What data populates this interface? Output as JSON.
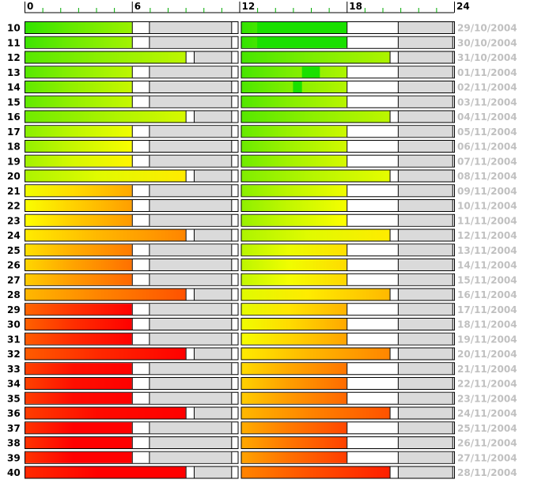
{
  "chart_data": {
    "type": "heatmap",
    "title": "",
    "xlabel": "",
    "ylabel": "",
    "x_ticks": [
      "0",
      "6",
      "12",
      "18",
      "24"
    ],
    "xlim": [
      0,
      24
    ],
    "grid": false,
    "legend": "none",
    "colors": {
      "low": "#00dd00",
      "mid": "#ffff00",
      "high": "#ff0000",
      "unfilled": "#ffffff",
      "gray_segment": "#dadada",
      "date_text": "#c0c0c0"
    },
    "rows": [
      {
        "label": "10",
        "date": "29/10/2004",
        "c1": 0.18,
        "c2": 0.18,
        "c2_hi": 0.05
      },
      {
        "label": "11",
        "date": "30/10/2004",
        "c1": 0.2,
        "c2": 0.18,
        "c2_hi": 0.05
      },
      {
        "label": "12",
        "date": "31/10/2004",
        "c1": 0.25,
        "c2": 0.22
      },
      {
        "label": "13",
        "date": "01/11/2004",
        "c1": 0.25,
        "c2": 0.22,
        "c2_hi": 0.05
      },
      {
        "label": "14",
        "date": "02/11/2004",
        "c1": 0.27,
        "c2": 0.23,
        "c2_hi": 0.05
      },
      {
        "label": "15",
        "date": "03/11/2004",
        "c1": 0.27,
        "c2": 0.24
      },
      {
        "label": "16",
        "date": "04/11/2004",
        "c1": 0.3,
        "c2": 0.25
      },
      {
        "label": "17",
        "date": "05/11/2004",
        "c1": 0.35,
        "c2": 0.28
      },
      {
        "label": "18",
        "date": "06/11/2004",
        "c1": 0.37,
        "c2": 0.29
      },
      {
        "label": "19",
        "date": "07/11/2004",
        "c1": 0.4,
        "c2": 0.3
      },
      {
        "label": "20",
        "date": "08/11/2004",
        "c1": 0.42,
        "c2": 0.33
      },
      {
        "label": "21",
        "date": "09/11/2004",
        "c1": 0.55,
        "c2": 0.35
      },
      {
        "label": "22",
        "date": "10/11/2004",
        "c1": 0.57,
        "c2": 0.36
      },
      {
        "label": "23",
        "date": "11/11/2004",
        "c1": 0.58,
        "c2": 0.38
      },
      {
        "label": "24",
        "date": "12/11/2004",
        "c1": 0.62,
        "c2": 0.42
      },
      {
        "label": "25",
        "date": "13/11/2004",
        "c1": 0.64,
        "c2": 0.44
      },
      {
        "label": "26",
        "date": "14/11/2004",
        "c1": 0.66,
        "c2": 0.45
      },
      {
        "label": "27",
        "date": "15/11/2004",
        "c1": 0.68,
        "c2": 0.46
      },
      {
        "label": "28",
        "date": "16/11/2004",
        "c1": 0.72,
        "c2": 0.52
      },
      {
        "label": "29",
        "date": "17/11/2004",
        "c1": 0.88,
        "c2": 0.53
      },
      {
        "label": "30",
        "date": "18/11/2004",
        "c1": 0.89,
        "c2": 0.55
      },
      {
        "label": "31",
        "date": "19/11/2004",
        "c1": 0.9,
        "c2": 0.56
      },
      {
        "label": "32",
        "date": "20/11/2004",
        "c1": 0.9,
        "c2": 0.62
      },
      {
        "label": "33",
        "date": "21/11/2004",
        "c1": 0.95,
        "c2": 0.65
      },
      {
        "label": "34",
        "date": "22/11/2004",
        "c1": 0.95,
        "c2": 0.67
      },
      {
        "label": "35",
        "date": "23/11/2004",
        "c1": 0.96,
        "c2": 0.68
      },
      {
        "label": "36",
        "date": "24/11/2004",
        "c1": 0.96,
        "c2": 0.72
      },
      {
        "label": "37",
        "date": "25/11/2004",
        "c1": 0.98,
        "c2": 0.74
      },
      {
        "label": "38",
        "date": "26/11/2004",
        "c1": 0.98,
        "c2": 0.75
      },
      {
        "label": "39",
        "date": "27/11/2004",
        "c1": 0.98,
        "c2": 0.76
      },
      {
        "label": "40",
        "date": "28/11/2004",
        "c1": 1.0,
        "c2": 0.82
      }
    ]
  }
}
